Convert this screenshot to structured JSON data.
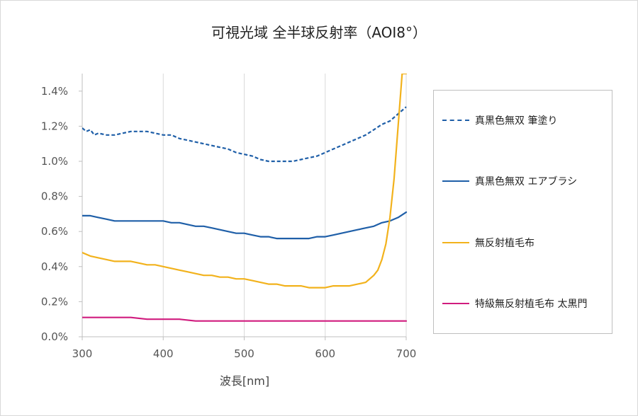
{
  "chart_data": {
    "type": "line",
    "title": "可視光域 全半球反射率（AOI8°）",
    "xlabel": "波長[nm]",
    "ylabel": "",
    "xlim": [
      300,
      700
    ],
    "ylim": [
      0.0,
      1.5
    ],
    "x_ticks": [
      300,
      400,
      500,
      600,
      700
    ],
    "x_tick_labels": [
      "300",
      "400",
      "500",
      "600",
      "700"
    ],
    "y_ticks": [
      0.0,
      0.2,
      0.4,
      0.6,
      0.8,
      1.0,
      1.2,
      1.4
    ],
    "y_tick_labels": [
      "0.0%",
      "0.2%",
      "0.4%",
      "0.6%",
      "0.8%",
      "1.0%",
      "1.2%",
      "1.4%"
    ],
    "grid": "vertical",
    "legend_position": "right",
    "series": [
      {
        "name": "真黒色無双 筆塗り",
        "color": "#1f5fa8",
        "style": "dashed",
        "x": [
          300,
          305,
          310,
          315,
          320,
          330,
          340,
          350,
          360,
          370,
          380,
          390,
          400,
          410,
          420,
          430,
          440,
          450,
          460,
          470,
          480,
          490,
          500,
          510,
          520,
          530,
          540,
          550,
          560,
          570,
          580,
          590,
          600,
          610,
          620,
          630,
          640,
          650,
          660,
          670,
          680,
          690,
          700
        ],
        "y": [
          1.19,
          1.17,
          1.18,
          1.15,
          1.16,
          1.15,
          1.15,
          1.16,
          1.17,
          1.17,
          1.17,
          1.16,
          1.15,
          1.15,
          1.13,
          1.12,
          1.11,
          1.1,
          1.09,
          1.08,
          1.07,
          1.05,
          1.04,
          1.03,
          1.01,
          1.0,
          1.0,
          1.0,
          1.0,
          1.01,
          1.02,
          1.03,
          1.05,
          1.07,
          1.09,
          1.11,
          1.13,
          1.15,
          1.18,
          1.21,
          1.23,
          1.27,
          1.31
        ]
      },
      {
        "name": "真黒色無双 エアブラシ",
        "color": "#1f5fa8",
        "style": "solid",
        "x": [
          300,
          310,
          320,
          330,
          340,
          350,
          360,
          370,
          380,
          390,
          400,
          410,
          420,
          430,
          440,
          450,
          460,
          470,
          480,
          490,
          500,
          510,
          520,
          530,
          540,
          550,
          560,
          570,
          580,
          590,
          600,
          610,
          620,
          630,
          640,
          650,
          660,
          670,
          680,
          690,
          700
        ],
        "y": [
          0.69,
          0.69,
          0.68,
          0.67,
          0.66,
          0.66,
          0.66,
          0.66,
          0.66,
          0.66,
          0.66,
          0.65,
          0.65,
          0.64,
          0.63,
          0.63,
          0.62,
          0.61,
          0.6,
          0.59,
          0.59,
          0.58,
          0.57,
          0.57,
          0.56,
          0.56,
          0.56,
          0.56,
          0.56,
          0.57,
          0.57,
          0.58,
          0.59,
          0.6,
          0.61,
          0.62,
          0.63,
          0.65,
          0.66,
          0.68,
          0.71
        ]
      },
      {
        "name": "無反射植毛布",
        "color": "#f2b21c",
        "style": "solid",
        "x": [
          300,
          310,
          320,
          330,
          340,
          350,
          360,
          370,
          380,
          390,
          400,
          410,
          420,
          430,
          440,
          450,
          460,
          470,
          480,
          490,
          500,
          510,
          520,
          530,
          540,
          550,
          560,
          570,
          580,
          590,
          600,
          610,
          620,
          630,
          640,
          650,
          660,
          665,
          670,
          675,
          680,
          685,
          690,
          695,
          700
        ],
        "y": [
          0.48,
          0.46,
          0.45,
          0.44,
          0.43,
          0.43,
          0.43,
          0.42,
          0.41,
          0.41,
          0.4,
          0.39,
          0.38,
          0.37,
          0.36,
          0.35,
          0.35,
          0.34,
          0.34,
          0.33,
          0.33,
          0.32,
          0.31,
          0.3,
          0.3,
          0.29,
          0.29,
          0.29,
          0.28,
          0.28,
          0.28,
          0.29,
          0.29,
          0.29,
          0.3,
          0.31,
          0.35,
          0.38,
          0.44,
          0.53,
          0.68,
          0.9,
          1.2,
          1.5,
          1.5
        ]
      },
      {
        "name": "特級無反射植毛布 太黒門",
        "color": "#d01c7e",
        "style": "solid",
        "x": [
          300,
          320,
          340,
          360,
          380,
          400,
          420,
          440,
          460,
          480,
          500,
          520,
          540,
          560,
          580,
          600,
          620,
          640,
          660,
          680,
          700
        ],
        "y": [
          0.11,
          0.11,
          0.11,
          0.11,
          0.1,
          0.1,
          0.1,
          0.09,
          0.09,
          0.09,
          0.09,
          0.09,
          0.09,
          0.09,
          0.09,
          0.09,
          0.09,
          0.09,
          0.09,
          0.09,
          0.09
        ]
      }
    ]
  }
}
